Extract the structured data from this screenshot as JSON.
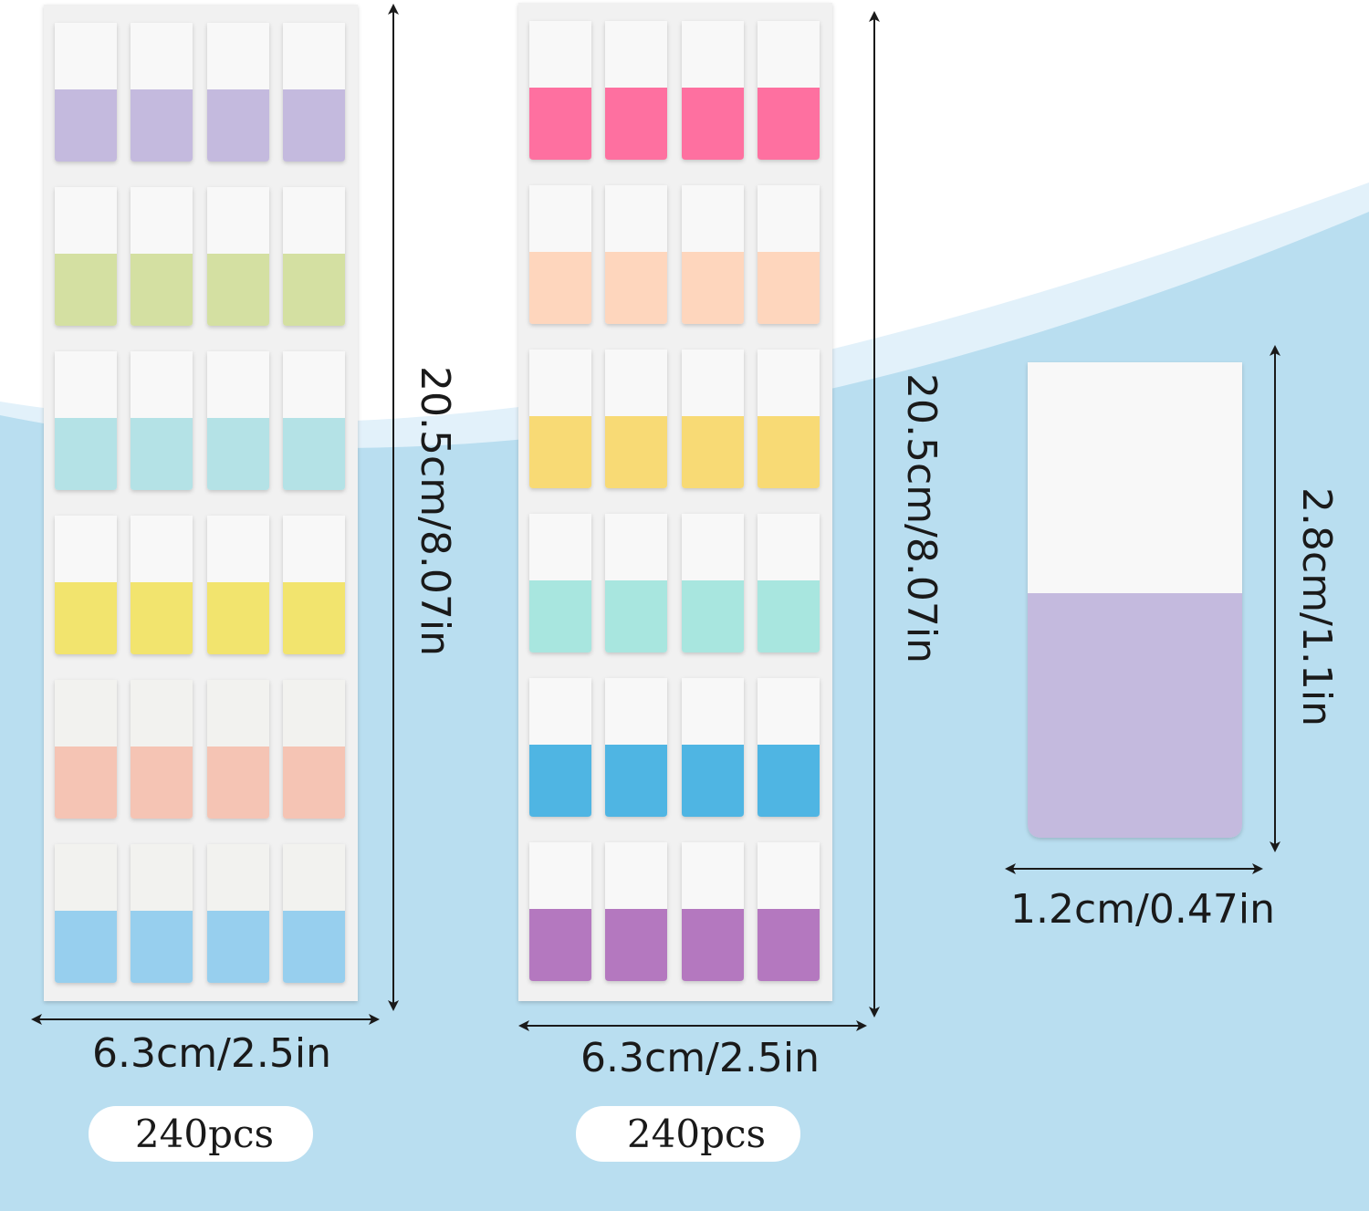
{
  "sheets": [
    {
      "height_label": "20.5cm/8.07in",
      "width_label": "6.3cm/2.5in",
      "count_label": "240pcs",
      "row_colors": [
        "#c4bade",
        "#d4e0a2",
        "#b4e2e6",
        "#f2e46e",
        "#f5c4b4",
        "#97cfee"
      ]
    },
    {
      "height_label": "20.5cm/8.07in",
      "width_label": "6.3cm/2.5in",
      "count_label": "240pcs",
      "row_colors": [
        "#fe6fa0",
        "#fed6bd",
        "#f8da74",
        "#a8e6df",
        "#50b5e3",
        "#b478bf"
      ]
    }
  ],
  "single_tab": {
    "height_label": "2.8cm/1.1in",
    "width_label": "1.2cm/0.47in",
    "color": "#c4bade"
  },
  "colors": {
    "background_wave": "#b9def0",
    "background_wave_light": "#e2f1fa",
    "sheet": "#f1f1f1",
    "tab_white": "#f8f8f8",
    "arrow": "#1a1a1a"
  }
}
